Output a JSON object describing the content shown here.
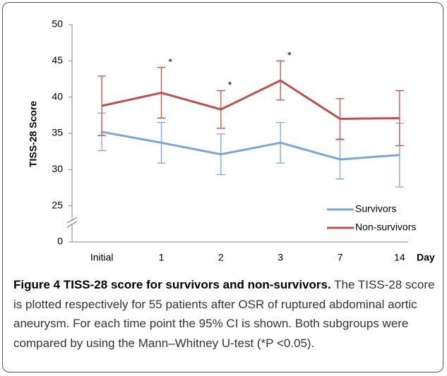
{
  "chart_data": {
    "type": "line",
    "ylabel": "TISS-28 Score",
    "xlabel": "Day",
    "categories": [
      "Initial",
      "1",
      "2",
      "3",
      "7",
      "14"
    ],
    "series": [
      {
        "name": "Survivors",
        "color": "#7ba6d9",
        "values": [
          35.2,
          33.7,
          32.1,
          33.7,
          31.4,
          32.0
        ],
        "errors": [
          2.6,
          2.8,
          2.8,
          2.8,
          2.7,
          4.4
        ]
      },
      {
        "name": "Non-survivors",
        "color": "#c0504d",
        "values": [
          38.8,
          40.6,
          38.3,
          42.3,
          37.0,
          37.1
        ],
        "errors": [
          4.1,
          3.5,
          2.6,
          2.7,
          2.8,
          3.8
        ]
      }
    ],
    "annotations": [
      {
        "text": "*",
        "at": "1"
      },
      {
        "text": "*",
        "at": "2"
      },
      {
        "text": "*",
        "at": "3"
      }
    ],
    "ylim": [
      0,
      50
    ],
    "axis_break": [
      0,
      20
    ],
    "yticks": [
      0,
      25,
      30,
      35,
      40,
      45,
      50
    ],
    "legend": "lower right"
  },
  "caption": {
    "label": "Figure 4",
    "title": "TISS-28 score for survivors and non-survivors.",
    "text": "The TISS-28 score is plotted respectively for 55 patients after OSR of ruptured abdominal aortic aneurysm. For each time point the 95% CI is shown. Both subgroups were compared by using the Mann–Whitney U-test (*P <0.05)."
  }
}
